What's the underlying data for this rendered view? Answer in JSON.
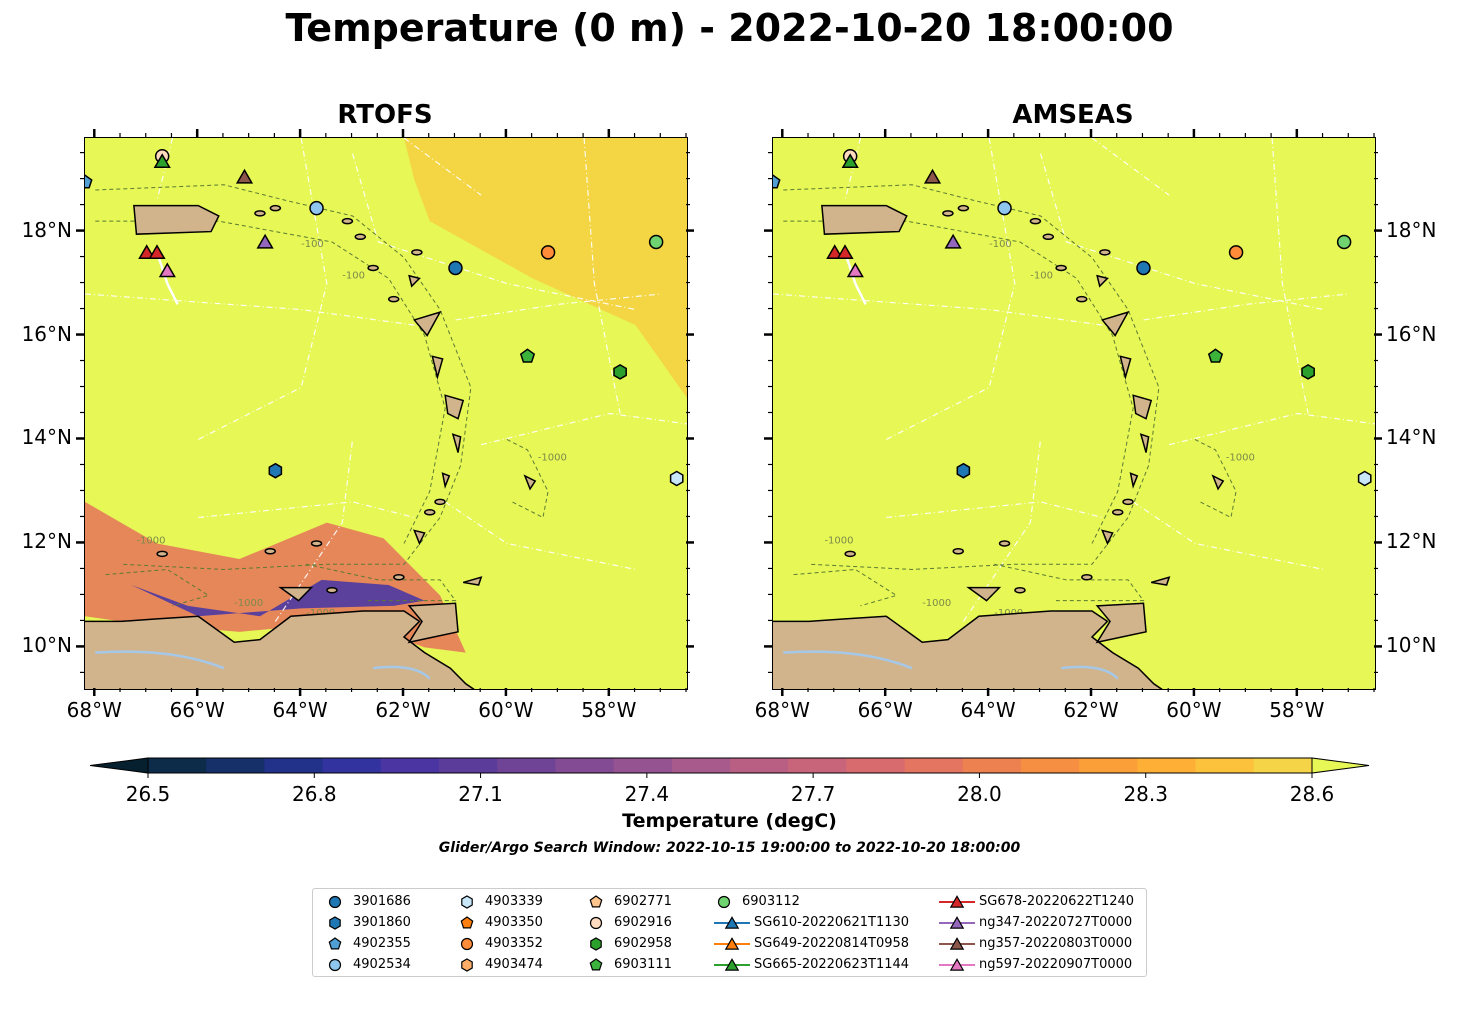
{
  "suptitle": "Temperature (0 m) - 2022-10-20 18:00:00",
  "panels": [
    {
      "title": "RTOFS"
    },
    {
      "title": "AMSEAS"
    }
  ],
  "axes": {
    "lon_ticks": [
      "68°W",
      "66°W",
      "64°W",
      "62°W",
      "60°W",
      "58°W"
    ],
    "lat_ticks": [
      "18°N",
      "16°N",
      "14°N",
      "12°N",
      "10°N"
    ],
    "lon_range": [
      -68.2,
      -56.5
    ],
    "lat_range": [
      9.2,
      19.8
    ]
  },
  "colorbar": {
    "label": "Temperature (degC)",
    "ticks": [
      "26.5",
      "26.8",
      "27.1",
      "27.4",
      "27.7",
      "28.0",
      "28.3",
      "28.6"
    ],
    "vmin": 26.5,
    "vmax": 28.6,
    "colors": [
      "#062030",
      "#0c2c4a",
      "#16306a",
      "#22318a",
      "#33339f",
      "#4a35a3",
      "#5c3c9b",
      "#6f4396",
      "#824b94",
      "#955391",
      "#a85a8c",
      "#b95f84",
      "#c9657a",
      "#d86b6d",
      "#e47560",
      "#ee8150",
      "#f68f42",
      "#fb9f38",
      "#fdb035",
      "#fcc23b",
      "#f6d447",
      "#e6f756"
    ]
  },
  "search_window": "Glider/Argo Search Window: 2022-10-15 19:00:00 to 2022-10-20 18:00:00",
  "contour_labels": [
    "-100",
    "-1000"
  ],
  "colors": {
    "land": "#d2b48c",
    "ocean": "#e6f756",
    "lake": "#a6c8e8"
  },
  "legend": [
    {
      "label": "3901686",
      "kind": "marker",
      "shape": "circle",
      "color": "#1f77b4"
    },
    {
      "label": "3901860",
      "kind": "marker",
      "shape": "hexagon",
      "color": "#1f77b4"
    },
    {
      "label": "4902355",
      "kind": "marker",
      "shape": "pentagon",
      "color": "#4f9ed4"
    },
    {
      "label": "4902534",
      "kind": "marker",
      "shape": "circle",
      "color": "#8ec6ee"
    },
    {
      "label": "4903339",
      "kind": "marker",
      "shape": "hexagon",
      "color": "#c8e8fa"
    },
    {
      "label": "4903350",
      "kind": "marker",
      "shape": "pentagon",
      "color": "#ff7f0e"
    },
    {
      "label": "4903352",
      "kind": "marker",
      "shape": "circle",
      "color": "#ff8c38"
    },
    {
      "label": "4903474",
      "kind": "marker",
      "shape": "hexagon",
      "color": "#ffae6a"
    },
    {
      "label": "6902771",
      "kind": "marker",
      "shape": "pentagon",
      "color": "#ffc58f"
    },
    {
      "label": "6902916",
      "kind": "marker",
      "shape": "circle",
      "color": "#ffdcc0"
    },
    {
      "label": "6902958",
      "kind": "marker",
      "shape": "hexagon",
      "color": "#2ca02c"
    },
    {
      "label": "6903111",
      "kind": "marker",
      "shape": "pentagon",
      "color": "#3cb43c"
    },
    {
      "label": "6903112",
      "kind": "marker",
      "shape": "circle",
      "color": "#6fd46f"
    },
    {
      "label": "SG610-20220621T1130",
      "kind": "track",
      "shape": "triangle",
      "color": "#1f77b4"
    },
    {
      "label": "SG649-20220814T0958",
      "kind": "track",
      "shape": "triangle",
      "color": "#ff7f0e"
    },
    {
      "label": "SG665-20220623T1144",
      "kind": "track",
      "shape": "triangle",
      "color": "#2ca02c"
    },
    {
      "label": "SG678-20220622T1240",
      "kind": "track",
      "shape": "triangle",
      "color": "#d62728"
    },
    {
      "label": "ng347-20220727T0000",
      "kind": "track",
      "shape": "triangle",
      "color": "#9467bd"
    },
    {
      "label": "ng357-20220803T0000",
      "kind": "track",
      "shape": "triangle",
      "color": "#8c564b"
    },
    {
      "label": "ng597-20220907T0000",
      "kind": "track",
      "shape": "triangle",
      "color": "#e377c2"
    }
  ],
  "platforms": [
    {
      "id": "3901686",
      "lon": -61.0,
      "lat": 17.3
    },
    {
      "id": "3901860",
      "lon": -64.5,
      "lat": 13.4
    },
    {
      "id": "4902355",
      "lon": -68.2,
      "lat": 18.95
    },
    {
      "id": "4902534",
      "lon": -63.7,
      "lat": 18.45
    },
    {
      "id": "4903339",
      "lon": -56.7,
      "lat": 13.25
    },
    {
      "id": "4903352",
      "lon": -59.2,
      "lat": 17.6
    },
    {
      "id": "6902916",
      "lon": -66.7,
      "lat": 19.45
    },
    {
      "id": "6902958",
      "lon": -57.8,
      "lat": 15.3
    },
    {
      "id": "6903111",
      "lon": -59.6,
      "lat": 15.6
    },
    {
      "id": "6903112",
      "lon": -57.1,
      "lat": 17.8
    },
    {
      "id": "SG665-20220623T1144",
      "lon": -66.7,
      "lat": 19.35
    },
    {
      "id": "SG678-20220622T1240",
      "lon": -67.0,
      "lat": 17.6
    },
    {
      "id": "SG678-20220622T1240",
      "lon": -66.8,
      "lat": 17.6
    },
    {
      "id": "ng347-20220727T0000",
      "lon": -64.7,
      "lat": 17.8
    },
    {
      "id": "ng357-20220803T0000",
      "lon": -65.1,
      "lat": 19.05
    },
    {
      "id": "ng597-20220907T0000",
      "lon": -66.6,
      "lat": 17.25
    }
  ]
}
